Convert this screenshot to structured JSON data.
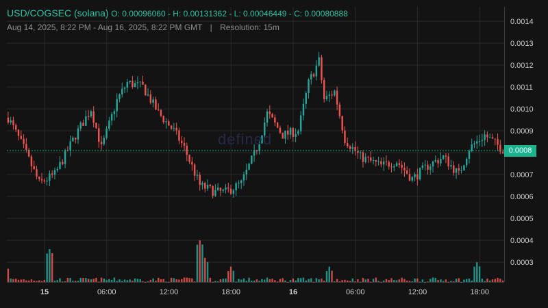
{
  "header": {
    "pair": "USD/COGSEC (solana)",
    "ohlc": "O: 0.00096060 - H: 0.00131362 - L: 0.00046449 - C: 0.00080888",
    "range": "Aug 14, 2025, 8:22 PM - Aug 16, 2025, 8:22 PM GMT",
    "separator": "|",
    "resolution": "Resolution: 15m"
  },
  "watermark": "defined",
  "current_price_label": "0.0008",
  "colors": {
    "background": "#131313",
    "grid": "#2a2a2a",
    "up": "#26a69a",
    "down": "#ef5350",
    "accent": "#17b48e",
    "axis_text": "#cfcfcf"
  },
  "chart_data": {
    "type": "candlestick",
    "resolution": "15m",
    "y_axis": {
      "ticks": [
        "0.0014",
        "0.0013",
        "0.0012",
        "0.0011",
        "0.0010",
        "0.0009",
        "0.0008",
        "0.0007",
        "0.0006",
        "0.0005",
        "0.0004",
        "0.0003"
      ],
      "range": [
        0.0003,
        0.0014
      ]
    },
    "x_axis": {
      "ticks": [
        "15",
        "06:00",
        "12:00",
        "18:00",
        "16",
        "06:00",
        "12:00",
        "18:00"
      ],
      "range": [
        "2025-08-14 20:22",
        "2025-08-16 20:22"
      ]
    },
    "current_price": 0.00080888,
    "trend": [
      [
        "2025-08-14 20:30",
        0.00096
      ],
      [
        "2025-08-14 22:00",
        0.00082
      ],
      [
        "2025-08-14 23:30",
        0.00066
      ],
      [
        "2025-08-15 01:00",
        0.0007
      ],
      [
        "2025-08-15 03:00",
        0.00088
      ],
      [
        "2025-08-15 04:30",
        0.001
      ],
      [
        "2025-08-15 05:30",
        0.00082
      ],
      [
        "2025-08-15 07:00",
        0.00104
      ],
      [
        "2025-08-15 08:00",
        0.00112
      ],
      [
        "2025-08-15 09:30",
        0.0011
      ],
      [
        "2025-08-15 11:00",
        0.00098
      ],
      [
        "2025-08-15 12:30",
        0.0009
      ],
      [
        "2025-08-15 13:30",
        0.00082
      ],
      [
        "2025-08-15 15:00",
        0.00065
      ],
      [
        "2025-08-15 16:30",
        0.00062
      ],
      [
        "2025-08-15 17:30",
        0.00062
      ],
      [
        "2025-08-15 19:00",
        0.00066
      ],
      [
        "2025-08-15 20:30",
        0.00082
      ],
      [
        "2025-08-15 21:30",
        0.00098
      ],
      [
        "2025-08-15 23:00",
        0.00088
      ],
      [
        "2025-08-16 00:30",
        0.0009
      ],
      [
        "2025-08-16 01:30",
        0.00112
      ],
      [
        "2025-08-16 02:30",
        0.00122
      ],
      [
        "2025-08-16 03:00",
        0.00104
      ],
      [
        "2025-08-16 04:00",
        0.00108
      ],
      [
        "2025-08-16 05:00",
        0.00086
      ],
      [
        "2025-08-16 06:30",
        0.00078
      ],
      [
        "2025-08-16 08:30",
        0.00074
      ],
      [
        "2025-08-16 10:00",
        0.00076
      ],
      [
        "2025-08-16 11:30",
        0.00068
      ],
      [
        "2025-08-16 13:00",
        0.00074
      ],
      [
        "2025-08-16 14:30",
        0.00078
      ],
      [
        "2025-08-16 16:00",
        0.0007
      ],
      [
        "2025-08-16 17:00",
        0.00082
      ],
      [
        "2025-08-16 18:30",
        0.00088
      ],
      [
        "2025-08-16 20:22",
        0.00081
      ]
    ],
    "volume_spikes": [
      [
        "2025-08-14 20:22",
        0.00028
      ],
      [
        "2025-08-15 00:30",
        0.00036
      ],
      [
        "2025-08-15 15:00",
        0.0004
      ],
      [
        "2025-08-15 15:30",
        0.00032
      ],
      [
        "2025-08-15 18:00",
        0.00028
      ],
      [
        "2025-08-16 03:30",
        0.00028
      ],
      [
        "2025-08-16 17:45",
        0.0003
      ]
    ]
  }
}
